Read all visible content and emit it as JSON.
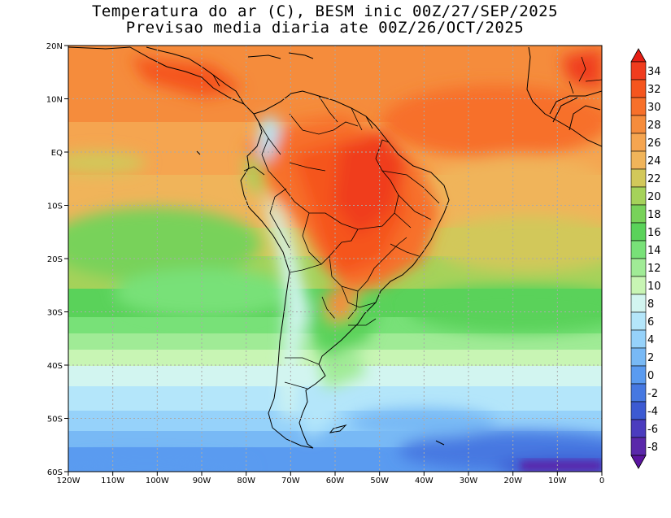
{
  "title": {
    "line1": "Temperatura do ar (C), BESM inic 00Z/27/SEP/2025",
    "line2": "Previsao media diaria ate 00Z/26/OCT/2025"
  },
  "map": {
    "lon_range": [
      -120,
      0
    ],
    "lat_range": [
      -60,
      20
    ],
    "lat_labels": [
      {
        "lat": 20,
        "label": "20N"
      },
      {
        "lat": 10,
        "label": "10N"
      },
      {
        "lat": 0,
        "label": "EQ"
      },
      {
        "lat": -10,
        "label": "10S"
      },
      {
        "lat": -20,
        "label": "20S"
      },
      {
        "lat": -30,
        "label": "30S"
      },
      {
        "lat": -40,
        "label": "40S"
      },
      {
        "lat": -50,
        "label": "50S"
      },
      {
        "lat": -60,
        "label": "60S"
      }
    ],
    "lon_labels": [
      {
        "lon": -120,
        "label": "120W"
      },
      {
        "lon": -110,
        "label": "110W"
      },
      {
        "lon": -100,
        "label": "100W"
      },
      {
        "lon": -90,
        "label": "90W"
      },
      {
        "lon": -80,
        "label": "80W"
      },
      {
        "lon": -70,
        "label": "70W"
      },
      {
        "lon": -60,
        "label": "60W"
      },
      {
        "lon": -50,
        "label": "50W"
      },
      {
        "lon": -40,
        "label": "40W"
      },
      {
        "lon": -30,
        "label": "30W"
      },
      {
        "lon": -20,
        "label": "20W"
      },
      {
        "lon": -10,
        "label": "10W"
      },
      {
        "lon": 0,
        "label": "0"
      }
    ]
  },
  "colorbar": {
    "levels": [
      {
        "label": "34",
        "color": "#f03c1e"
      },
      {
        "label": "32",
        "color": "#f5551e"
      },
      {
        "label": "30",
        "color": "#f7702a"
      },
      {
        "label": "28",
        "color": "#f58c3c"
      },
      {
        "label": "26",
        "color": "#f5a550"
      },
      {
        "label": "24",
        "color": "#f0b45a"
      },
      {
        "label": "22",
        "color": "#d2c85a"
      },
      {
        "label": "20",
        "color": "#a5d25a"
      },
      {
        "label": "18",
        "color": "#78d25a"
      },
      {
        "label": "16",
        "color": "#5ad25a"
      },
      {
        "label": "14",
        "color": "#78e178"
      },
      {
        "label": "12",
        "color": "#a0eb96"
      },
      {
        "label": "10",
        "color": "#c8f5b4"
      },
      {
        "label": "8",
        "color": "#d2f5f0"
      },
      {
        "label": "6",
        "color": "#b4e6fa"
      },
      {
        "label": "4",
        "color": "#96d2fa"
      },
      {
        "label": "2",
        "color": "#78b9f5"
      },
      {
        "label": "0",
        "color": "#5a9bf0"
      },
      {
        "label": "-2",
        "color": "#4678e1"
      },
      {
        "label": "-4",
        "color": "#3c5ad2"
      },
      {
        "label": "-6",
        "color": "#4b3cbe"
      },
      {
        "label": "-8",
        "color": "#5a28aa"
      }
    ],
    "top_color": "#e61e14",
    "bottom_color": "#5a14a0"
  }
}
